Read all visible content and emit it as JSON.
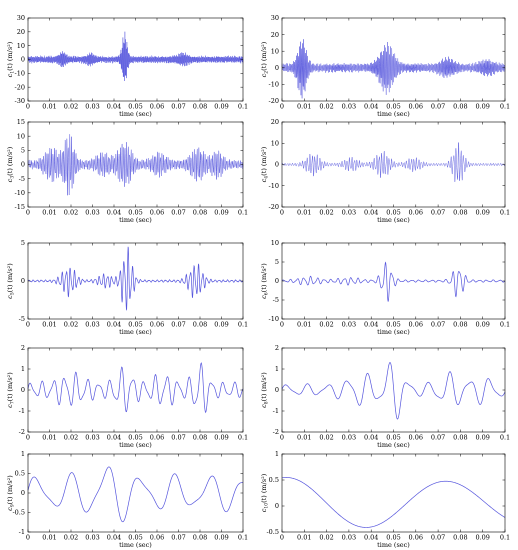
{
  "figure": {
    "xlabel": "time (sec)",
    "line_color": "#5555dd"
  },
  "chart_data": [
    {
      "type": "line",
      "ylabel_var": "c",
      "ylabel_sub": "1",
      "ylabel_unit": "(m/s²)",
      "xlim": [
        0,
        0.1
      ],
      "ylim": [
        -30,
        30
      ],
      "yticks": [
        -30,
        -20,
        -10,
        0,
        10,
        20,
        30
      ],
      "xticks": [
        "0",
        "0.01",
        "0.02",
        "0.03",
        "0.04",
        "0.05",
        "0.06",
        "0.07",
        "0.08",
        "0.09",
        "0.1"
      ],
      "xlabel": "time (sec)"
    },
    {
      "type": "line",
      "ylabel_var": "c",
      "ylabel_sub": "2",
      "ylabel_unit": "(m/s²)",
      "xlim": [
        0,
        0.1
      ],
      "ylim": [
        -20,
        30
      ],
      "yticks": [
        -20,
        -10,
        0,
        10,
        20,
        30
      ],
      "xticks": [
        "0",
        "0.01",
        "0.02",
        "0.03",
        "0.04",
        "0.05",
        "0.06",
        "0.07",
        "0.08",
        "0.09",
        "0.1"
      ],
      "xlabel": "time (sec)"
    },
    {
      "type": "line",
      "ylabel_var": "c",
      "ylabel_sub": "3",
      "ylabel_unit": "(m/s²)",
      "xlim": [
        0,
        0.1
      ],
      "ylim": [
        -15,
        15
      ],
      "yticks": [
        -15,
        -10,
        -5,
        0,
        5,
        10,
        15
      ],
      "xticks": [
        "0",
        "0.01",
        "0.02",
        "0.03",
        "0.04",
        "0.05",
        "0.06",
        "0.07",
        "0.08",
        "0.09",
        "0.1"
      ],
      "xlabel": "time (sec)"
    },
    {
      "type": "line",
      "ylabel_var": "c",
      "ylabel_sub": "4",
      "ylabel_unit": "(m/s²)",
      "xlim": [
        0,
        0.1
      ],
      "ylim": [
        -20,
        20
      ],
      "yticks": [
        -20,
        -10,
        0,
        10,
        20
      ],
      "xticks": [
        "0",
        "0.01",
        "0.02",
        "0.03",
        "0.04",
        "0.05",
        "0.06",
        "0.07",
        "0.08",
        "0.09",
        "0.1"
      ],
      "xlabel": "time (sec)"
    },
    {
      "type": "line",
      "ylabel_var": "c",
      "ylabel_sub": "5",
      "ylabel_unit": "(m/s²)",
      "xlim": [
        0,
        0.1
      ],
      "ylim": [
        -5,
        5
      ],
      "yticks": [
        -5,
        0,
        5
      ],
      "xticks": [
        "0",
        "0.01",
        "0.02",
        "0.03",
        "0.04",
        "0.05",
        "0.06",
        "0.07",
        "0.08",
        "0.09",
        "0.1"
      ],
      "xlabel": "time (sec)"
    },
    {
      "type": "line",
      "ylabel_var": "c",
      "ylabel_sub": "6",
      "ylabel_unit": "(m/s²)",
      "xlim": [
        0,
        0.1
      ],
      "ylim": [
        -10,
        10
      ],
      "yticks": [
        -10,
        -5,
        0,
        5,
        10
      ],
      "xticks": [
        "0",
        "0.01",
        "0.02",
        "0.03",
        "0.04",
        "0.05",
        "0.06",
        "0.07",
        "0.08",
        "0.09",
        "0.1"
      ],
      "xlabel": "time (sec)"
    },
    {
      "type": "line",
      "ylabel_var": "c",
      "ylabel_sub": "7",
      "ylabel_unit": "(m/s²)",
      "xlim": [
        0,
        0.1
      ],
      "ylim": [
        -2,
        2
      ],
      "yticks": [
        -2,
        -1,
        0,
        1,
        2
      ],
      "xticks": [
        "0",
        "0.01",
        "0.02",
        "0.03",
        "0.04",
        "0.05",
        "0.06",
        "0.07",
        "0.08",
        "0.09",
        "0.1"
      ],
      "xlabel": "time (sec)"
    },
    {
      "type": "line",
      "ylabel_var": "c",
      "ylabel_sub": "8",
      "ylabel_unit": "(m/s²)",
      "xlim": [
        0,
        0.1
      ],
      "ylim": [
        -2,
        2
      ],
      "yticks": [
        -2,
        -1,
        0,
        1,
        2
      ],
      "xticks": [
        "0",
        "0.01",
        "0.02",
        "0.03",
        "0.04",
        "0.05",
        "0.06",
        "0.07",
        "0.08",
        "0.09",
        "0.1"
      ],
      "xlabel": "time (sec)"
    },
    {
      "type": "line",
      "ylabel_var": "c",
      "ylabel_sub": "9",
      "ylabel_unit": "(m/s²)",
      "xlim": [
        0,
        0.1
      ],
      "ylim": [
        -1,
        1
      ],
      "yticks": [
        -1,
        -0.5,
        0,
        0.5,
        1
      ],
      "xticks": [
        "0",
        "0.01",
        "0.02",
        "0.03",
        "0.04",
        "0.05",
        "0.06",
        "0.07",
        "0.08",
        "0.09",
        "0.1"
      ],
      "xlabel": "time (sec)"
    },
    {
      "type": "line",
      "ylabel_var": "c",
      "ylabel_sub": "10",
      "ylabel_unit": "(m/s²)",
      "xlim": [
        0,
        0.1
      ],
      "ylim": [
        -0.5,
        1
      ],
      "yticks": [
        -0.5,
        0,
        0.5,
        1
      ],
      "xticks": [
        "0",
        "0.01",
        "0.02",
        "0.03",
        "0.04",
        "0.05",
        "0.06",
        "0.07",
        "0.08",
        "0.09",
        "0.1"
      ],
      "xlabel": "time (sec)"
    }
  ]
}
